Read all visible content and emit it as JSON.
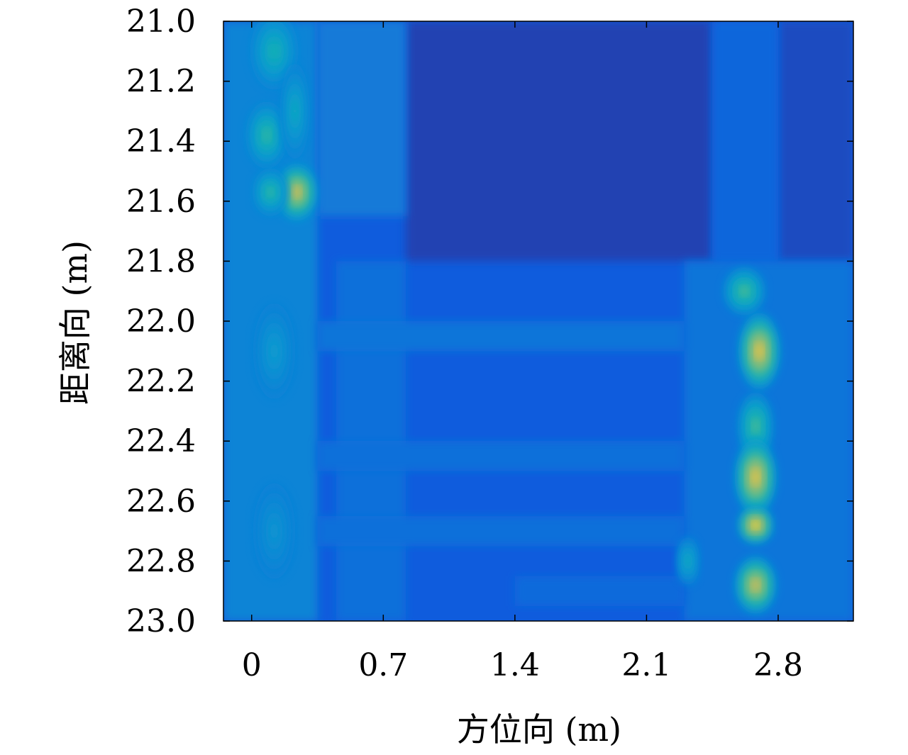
{
  "chart_data": {
    "type": "heatmap",
    "colormap": "parula",
    "xlabel": "方位向 (m)",
    "ylabel": "距离向 (m)",
    "xlim": [
      -0.15,
      3.2
    ],
    "ylim": [
      21.0,
      23.0
    ],
    "y_inverted": true,
    "x_ticks": [
      0,
      0.7,
      1.4,
      2.1,
      2.8
    ],
    "x_tick_labels": [
      "0",
      "0.7",
      "1.4",
      "2.1",
      "2.8"
    ],
    "y_ticks": [
      21.0,
      21.2,
      21.4,
      21.6,
      21.8,
      22.0,
      22.2,
      22.4,
      22.6,
      22.8,
      23.0
    ],
    "y_tick_labels": [
      "21.0",
      "21.2",
      "21.4",
      "21.6",
      "21.8",
      "22.0",
      "22.2",
      "22.4",
      "22.6",
      "22.8",
      "23.0"
    ],
    "grid": false,
    "background_level": 0.12,
    "regions": [
      {
        "x": [
          -0.15,
          3.2
        ],
        "y": [
          21.0,
          23.0
        ],
        "level": 0.12
      },
      {
        "x": [
          0.82,
          2.45
        ],
        "y": [
          21.0,
          21.8
        ],
        "level": 0.06
      },
      {
        "x": [
          2.8,
          3.2
        ],
        "y": [
          21.0,
          21.8
        ],
        "level": 0.08
      },
      {
        "x": [
          -0.15,
          0.35
        ],
        "y": [
          21.0,
          23.0
        ],
        "level": 0.28
      },
      {
        "x": [
          0.35,
          0.82
        ],
        "y": [
          21.0,
          21.65
        ],
        "level": 0.24
      },
      {
        "x": [
          0.45,
          0.82
        ],
        "y": [
          21.8,
          23.0
        ],
        "level": 0.2
      },
      {
        "x": [
          2.45,
          2.8
        ],
        "y": [
          21.0,
          21.8
        ],
        "level": 0.16
      },
      {
        "x": [
          2.3,
          3.2
        ],
        "y": [
          21.8,
          23.0
        ],
        "level": 0.22
      },
      {
        "x": [
          0.35,
          2.3
        ],
        "y": [
          22.0,
          22.1
        ],
        "level": 0.22
      },
      {
        "x": [
          0.35,
          2.3
        ],
        "y": [
          22.4,
          22.5
        ],
        "level": 0.2
      },
      {
        "x": [
          0.35,
          2.3
        ],
        "y": [
          22.65,
          22.75
        ],
        "level": 0.2
      },
      {
        "x": [
          1.4,
          2.3
        ],
        "y": [
          22.85,
          22.95
        ],
        "level": 0.18
      }
    ],
    "peaks": [
      {
        "x": 0.12,
        "y": 21.1,
        "sx": 0.08,
        "sy": 0.08,
        "level": 0.5
      },
      {
        "x": 0.08,
        "y": 21.38,
        "sx": 0.07,
        "sy": 0.07,
        "level": 0.55
      },
      {
        "x": 0.24,
        "y": 21.57,
        "sx": 0.07,
        "sy": 0.06,
        "level": 0.85
      },
      {
        "x": 0.1,
        "y": 21.57,
        "sx": 0.06,
        "sy": 0.05,
        "level": 0.55
      },
      {
        "x": 0.23,
        "y": 21.3,
        "sx": 0.05,
        "sy": 0.1,
        "level": 0.45
      },
      {
        "x": 0.12,
        "y": 22.1,
        "sx": 0.07,
        "sy": 0.1,
        "level": 0.38
      },
      {
        "x": 0.12,
        "y": 22.7,
        "sx": 0.07,
        "sy": 0.1,
        "level": 0.35
      },
      {
        "x": 2.62,
        "y": 21.9,
        "sx": 0.07,
        "sy": 0.05,
        "level": 0.6
      },
      {
        "x": 2.7,
        "y": 22.1,
        "sx": 0.07,
        "sy": 0.08,
        "level": 0.9
      },
      {
        "x": 2.68,
        "y": 22.35,
        "sx": 0.06,
        "sy": 0.07,
        "level": 0.6
      },
      {
        "x": 2.68,
        "y": 22.52,
        "sx": 0.07,
        "sy": 0.08,
        "level": 0.9
      },
      {
        "x": 2.68,
        "y": 22.68,
        "sx": 0.06,
        "sy": 0.04,
        "level": 0.95
      },
      {
        "x": 2.68,
        "y": 22.88,
        "sx": 0.07,
        "sy": 0.06,
        "level": 0.85
      },
      {
        "x": 2.32,
        "y": 22.8,
        "sx": 0.04,
        "sy": 0.05,
        "level": 0.45
      }
    ],
    "lines": [
      {
        "x": 0.15,
        "y": [
          21.2,
          23.0
        ],
        "level": 0.55
      }
    ]
  }
}
